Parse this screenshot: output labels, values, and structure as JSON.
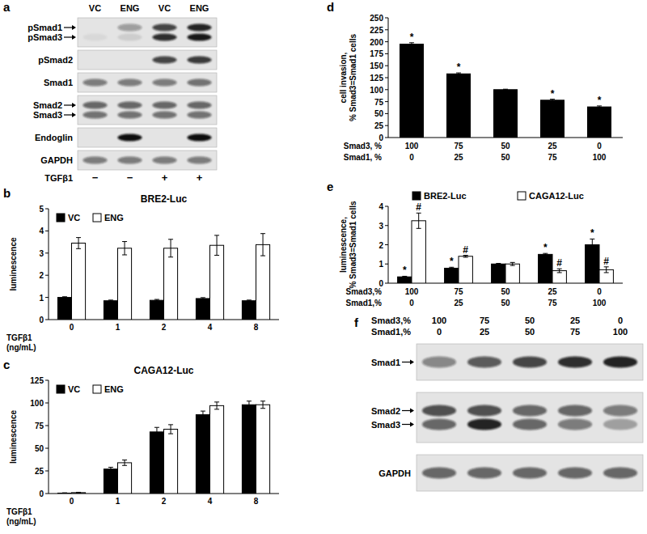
{
  "chart_data": [
    {
      "panel": "b",
      "type": "bar",
      "title": "BRE2-Luc",
      "x_label": [
        "TGFβ1",
        "(ng/mL)"
      ],
      "y_label": [
        "luminescence"
      ],
      "categories": [
        0,
        1,
        2,
        4,
        8
      ],
      "series": [
        {
          "name": "VC",
          "color": "#000000",
          "values": [
            1.0,
            0.85,
            0.87,
            0.95,
            0.85
          ],
          "errors": [
            0.03,
            0.03,
            0.04,
            0.04,
            0.03
          ]
        },
        {
          "name": "ENG",
          "color": "#ffffff",
          "values": [
            3.45,
            3.22,
            3.22,
            3.35,
            3.38
          ],
          "errors": [
            0.25,
            0.3,
            0.4,
            0.45,
            0.5
          ]
        }
      ],
      "ylim": [
        0,
        5
      ],
      "yticks": [
        0,
        1,
        2,
        3,
        4,
        5
      ],
      "legend": "upper left"
    },
    {
      "panel": "c",
      "type": "bar",
      "title": "CAGA12-Luc",
      "x_label": [
        "TGFβ1",
        "(ng/mL)"
      ],
      "y_label": [
        "luminescence"
      ],
      "categories": [
        0,
        1,
        2,
        4,
        8
      ],
      "series": [
        {
          "name": "VC",
          "color": "#000000",
          "values": [
            0.5,
            27,
            68,
            87,
            98
          ],
          "errors": [
            0.3,
            2,
            5,
            4,
            4
          ]
        },
        {
          "name": "ENG",
          "color": "#ffffff",
          "values": [
            1,
            34,
            71,
            97,
            98
          ],
          "errors": [
            0.4,
            3,
            5,
            4,
            4
          ]
        }
      ],
      "ylim": [
        0,
        125
      ],
      "yticks": [
        0,
        25,
        50,
        75,
        100,
        125
      ],
      "legend": "upper left"
    },
    {
      "panel": "d",
      "type": "bar",
      "x_label": [
        "Smad3, %",
        "Smad1, %"
      ],
      "y_label": [
        "cell invasion,",
        "% Smad3=Smad1 cells"
      ],
      "categories": [
        [
          100,
          0
        ],
        [
          75,
          25
        ],
        [
          50,
          50
        ],
        [
          25,
          75
        ],
        [
          0,
          100
        ]
      ],
      "values": [
        195,
        133,
        100,
        78,
        64
      ],
      "errors": [
        3,
        2,
        1,
        2,
        2
      ],
      "color": "#000000",
      "annotations": [
        "*",
        "*",
        null,
        "*",
        "*"
      ],
      "ylim": [
        0,
        250
      ],
      "yticks": [
        0,
        25,
        50,
        75,
        100,
        125,
        150,
        175,
        200,
        225,
        250
      ]
    },
    {
      "panel": "e",
      "type": "bar",
      "x_label": [
        "Smad3,%",
        "Smad1,%"
      ],
      "y_label": [
        "luminescence,",
        "% Smad3=Smad1 cells"
      ],
      "categories": [
        [
          100,
          0
        ],
        [
          75,
          25
        ],
        [
          50,
          50
        ],
        [
          25,
          75
        ],
        [
          0,
          100
        ]
      ],
      "series": [
        {
          "name": "BRE2-Luc",
          "color": "#000000",
          "values": [
            0.33,
            0.78,
            1.0,
            1.5,
            2.0
          ],
          "errors": [
            0.03,
            0.05,
            0.03,
            0.05,
            0.3
          ],
          "annotations": [
            "*",
            "*",
            null,
            "*",
            "*"
          ]
        },
        {
          "name": "CAGA12-Luc",
          "color": "#ffffff",
          "values": [
            3.25,
            1.4,
            1.0,
            0.65,
            0.7
          ],
          "errors": [
            0.4,
            0.05,
            0.08,
            0.1,
            0.15
          ],
          "annotations": [
            "#",
            "#",
            null,
            "#",
            "#"
          ]
        }
      ],
      "ylim": [
        0,
        4
      ],
      "yticks": [
        0,
        1,
        2,
        3,
        4
      ],
      "legend": "top"
    }
  ],
  "blots": [
    {
      "panel": "a",
      "lanes": [
        "VC",
        "ENG",
        "VC",
        "ENG"
      ],
      "rows": [
        {
          "labels": [
            "pSmad1",
            "pSmad3"
          ],
          "arrows": true,
          "bands": [
            [
              0,
              0.35,
              0.75,
              0.9
            ],
            [
              0.05,
              0.1,
              0.85,
              0.95
            ]
          ]
        },
        {
          "labels": [
            "pSmad2"
          ],
          "bands": [
            [
              0,
              0,
              0.75,
              0.8
            ]
          ]
        },
        {
          "labels": [
            "Smad1"
          ],
          "bands": [
            [
              0.5,
              0.5,
              0.5,
              0.55
            ]
          ]
        },
        {
          "labels": [
            "Smad2",
            "Smad3"
          ],
          "arrows": true,
          "bands": [
            [
              0.6,
              0.6,
              0.6,
              0.6
            ],
            [
              0.55,
              0.55,
              0.55,
              0.55
            ]
          ]
        },
        {
          "labels": [
            "Endoglin"
          ],
          "bands": [
            [
              0,
              1,
              0,
              1
            ]
          ]
        },
        {
          "labels": [
            "GAPDH"
          ],
          "bands": [
            [
              0.5,
              0.5,
              0.5,
              0.5
            ]
          ]
        }
      ],
      "treatment": {
        "label": "TGFβ1",
        "values": [
          "−",
          "−",
          "+",
          "+"
        ]
      }
    },
    {
      "panel": "f",
      "header": [
        {
          "label": "Smad3,%",
          "values": [
            100,
            75,
            50,
            25,
            0
          ]
        },
        {
          "label": "Smad1,%",
          "values": [
            0,
            25,
            50,
            75,
            100
          ]
        }
      ],
      "rows": [
        {
          "labels": [
            "Smad1"
          ],
          "arrows": true,
          "bands": [
            [
              0.45,
              0.65,
              0.75,
              0.85,
              0.9
            ]
          ]
        },
        {
          "labels": [
            "Smad2",
            "Smad3"
          ],
          "arrows": true,
          "bands": [
            [
              0.7,
              0.7,
              0.6,
              0.6,
              0.5
            ],
            [
              0.6,
              0.9,
              0.6,
              0.5,
              0.3
            ]
          ]
        },
        {
          "labels": [
            "GAPDH"
          ],
          "bands": [
            [
              0.6,
              0.6,
              0.6,
              0.6,
              0.6
            ]
          ]
        }
      ]
    }
  ]
}
